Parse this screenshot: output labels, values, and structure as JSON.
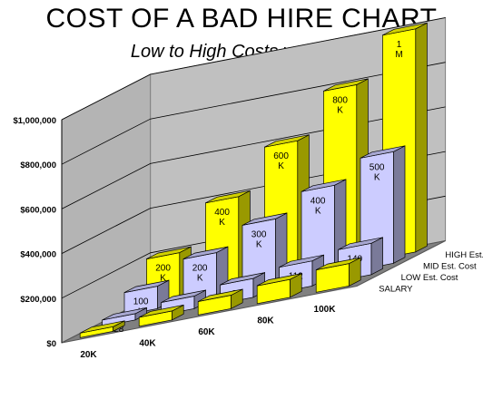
{
  "chart_data": {
    "type": "bar",
    "variant": "3d-column",
    "title": "COST OF A BAD HIRE CHART",
    "subtitle": "Low to High Costs v. Salary",
    "categories": [
      "20K",
      "40K",
      "60K",
      "80K",
      "100K"
    ],
    "series": [
      {
        "name": "SALARY",
        "values": [
          20000,
          40000,
          60000,
          80000,
          100000
        ],
        "color": "#ffff00",
        "labels": [
          "",
          "",
          "",
          "",
          ""
        ]
      },
      {
        "name": "LOW Est. Cost",
        "values": [
          28000,
          56000,
          84000,
          112000,
          140000
        ],
        "color": "#ccccff",
        "labels": [
          "28",
          "56",
          "84",
          "112",
          "140"
        ]
      },
      {
        "name": "MID Est. Cost",
        "values": [
          100000,
          200000,
          300000,
          400000,
          500000
        ],
        "color": "#ccccff",
        "labels": [
          "100 K",
          "200 K",
          "300 K",
          "400 K",
          "500 K"
        ]
      },
      {
        "name": "HIGH Est. Cost",
        "values": [
          200000,
          400000,
          600000,
          800000,
          1000000
        ],
        "color": "#ffff00",
        "labels": [
          "200 K",
          "400 K",
          "600 K",
          "800 K",
          "1 M"
        ]
      }
    ],
    "yticks": [
      "$0",
      "$200,000",
      "$400,000",
      "$600,000",
      "$800,000",
      "$1,000,000"
    ],
    "ylim": [
      0,
      1000000
    ],
    "grid": true,
    "floor_color": "#808080",
    "wall_color": "#c0c0c0"
  }
}
